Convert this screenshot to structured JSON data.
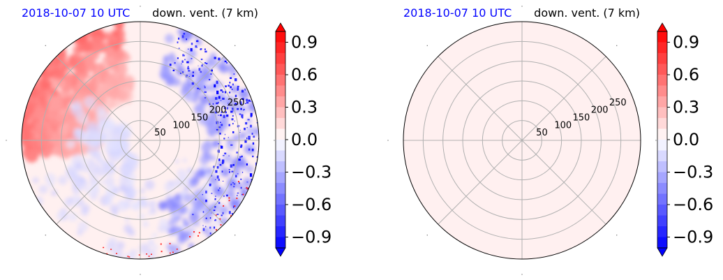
{
  "chart_data": [
    {
      "type": "heatmap",
      "projection": "polar",
      "title_left": "2018-10-07 10 UTC",
      "title_right": "down. vent. (7 km)",
      "radial_ticks": [
        50,
        100,
        150,
        200,
        250
      ],
      "r_max": 300,
      "angular_gridlines_deg": [
        0,
        45,
        90,
        135,
        180,
        225,
        270,
        315
      ],
      "grid": true,
      "field": "wind-shear ventilation with red positive and blue negative patches",
      "colorbar": {
        "cmap": "bwr",
        "vmin": -1.0,
        "vmax": 1.0,
        "extend": "both",
        "ticks": [
          "−0.9",
          "−0.6",
          "−0.3",
          "0.0",
          "0.3",
          "0.6",
          "0.9"
        ],
        "tick_values": [
          -0.9,
          -0.6,
          -0.3,
          0.0,
          0.3,
          0.6,
          0.9
        ]
      }
    },
    {
      "type": "heatmap",
      "projection": "polar",
      "title_left": "2018-10-07 10 UTC",
      "title_right": "down. vent. (7 km)",
      "radial_ticks": [
        50,
        100,
        150,
        200,
        250
      ],
      "r_max": 300,
      "angular_gridlines_deg": [
        0,
        45,
        90,
        135,
        180,
        225,
        270,
        315
      ],
      "grid": true,
      "field": "uniform faint positive",
      "colorbar": {
        "cmap": "bwr",
        "vmin": -1.0,
        "vmax": 1.0,
        "extend": "both",
        "ticks": [
          "−0.9",
          "−0.6",
          "−0.3",
          "0.0",
          "0.3",
          "0.6",
          "0.9"
        ],
        "tick_values": [
          -0.9,
          -0.6,
          -0.3,
          0.0,
          0.3,
          0.6,
          0.9
        ]
      }
    }
  ],
  "colors": {
    "title_date": "#0000ff",
    "positive": "#ff0000",
    "negative": "#0000ff",
    "grid": "#b0b0b0"
  }
}
